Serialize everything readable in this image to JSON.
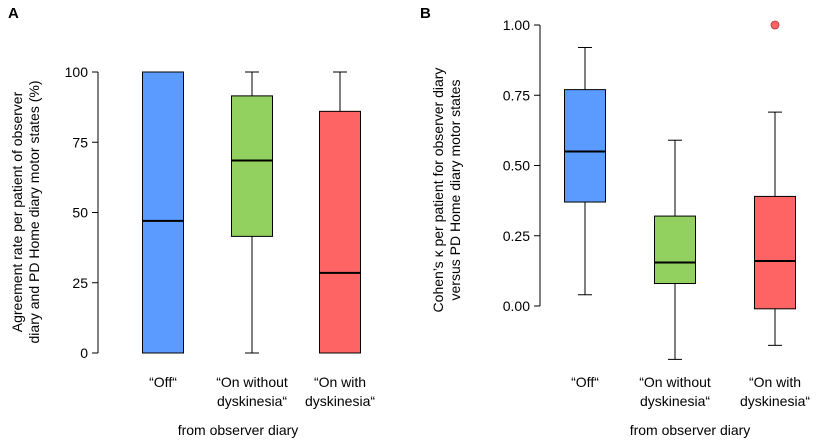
{
  "chart_data": [
    {
      "type": "box",
      "panel_label": "A",
      "ylabel_line1": "Agreement rate per patient of observer",
      "ylabel_line2": "diary and PD Home diary motor states (%)",
      "xlabel": "from observer diary",
      "ylim": [
        0,
        100
      ],
      "yticks": [
        0,
        25,
        50,
        75,
        100
      ],
      "ytick_labels": [
        "0",
        "25",
        "50",
        "75",
        "100"
      ],
      "categories": [
        {
          "line1": "“Off“",
          "line2": ""
        },
        {
          "line1": "“On without",
          "line2": "dyskinesia“"
        },
        {
          "line1": "“On with",
          "line2": "dyskinesia“"
        }
      ],
      "boxes": [
        {
          "min": 0,
          "q1": 0,
          "median": 47,
          "q3": 100,
          "max": 100,
          "outliers": [],
          "color": "#5b9bff"
        },
        {
          "min": 0,
          "q1": 41.5,
          "median": 68.5,
          "q3": 91.5,
          "max": 100,
          "outliers": [],
          "color": "#92d060"
        },
        {
          "min": 0,
          "q1": 0,
          "median": 28.5,
          "q3": 86,
          "max": 100,
          "outliers": [],
          "color": "#ff6464"
        }
      ]
    },
    {
      "type": "box",
      "panel_label": "B",
      "ylabel_line1": "Cohen’s κ  per patient for observer diary",
      "ylabel_line2": "versus PD Home diary motor states",
      "xlabel": "from observer diary",
      "ylim": [
        -0.2,
        1.0
      ],
      "yticks": [
        0,
        0.25,
        0.5,
        0.75,
        1.0
      ],
      "ytick_labels": [
        "0.00",
        "0.25",
        "0.50",
        "0.75",
        "1.00"
      ],
      "categories": [
        {
          "line1": "“Off“",
          "line2": ""
        },
        {
          "line1": "“On without",
          "line2": "dyskinesia“"
        },
        {
          "line1": "“On with",
          "line2": "dyskinesia“"
        }
      ],
      "boxes": [
        {
          "min": 0.04,
          "q1": 0.37,
          "median": 0.55,
          "q3": 0.77,
          "max": 0.92,
          "outliers": [],
          "color": "#5b9bff"
        },
        {
          "min": -0.19,
          "q1": 0.08,
          "median": 0.155,
          "q3": 0.32,
          "max": 0.59,
          "outliers": [],
          "color": "#92d060"
        },
        {
          "min": -0.14,
          "q1": -0.01,
          "median": 0.16,
          "q3": 0.39,
          "max": 0.69,
          "outliers": [
            1.0
          ],
          "color": "#ff6464"
        }
      ]
    }
  ]
}
